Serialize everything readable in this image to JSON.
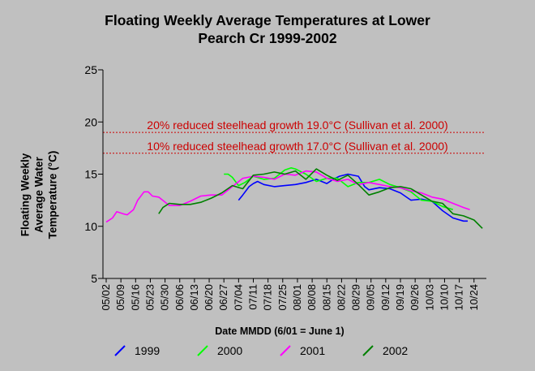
{
  "chart_data": {
    "type": "line",
    "title": "Floating Weekly Average Temperatures at Lower\nPearch Cr 1999-2002",
    "xlabel": "Date MMDD (6/01 = June 1)",
    "ylabel": "Floating Weekly\nAverage Water\nTemperature (°C)",
    "ylim": [
      5,
      25
    ],
    "yticks": [
      5,
      10,
      15,
      20,
      25
    ],
    "xticks": [
      "05/02",
      "05/09",
      "05/16",
      "05/23",
      "05/30",
      "06/06",
      "06/13",
      "06/20",
      "06/27",
      "07/04",
      "07/11",
      "07/18",
      "07/25",
      "08/01",
      "08/08",
      "08/15",
      "08/22",
      "08/29",
      "09/05",
      "09/12",
      "09/19",
      "09/26",
      "10/03",
      "10/10",
      "10/17",
      "10/24"
    ],
    "grid": false,
    "legend_position": "bottom",
    "reference_lines": [
      {
        "label": "20% reduced steelhead growth 19.0°C (Sullivan et al. 2000)",
        "value": 19.0,
        "color": "#cc0000"
      },
      {
        "label": "10% reduced steelhead growth 17.0°C (Sullivan et al. 2000)",
        "value": 17.0,
        "color": "#cc0000"
      }
    ],
    "series": [
      {
        "name": "1999",
        "color": "#0000ff",
        "x": [
          63,
          65,
          68,
          70,
          72,
          75,
          80,
          85,
          90,
          95,
          100,
          105,
          108,
          111,
          115,
          120,
          123,
          125,
          130,
          135,
          140,
          145,
          150,
          155,
          160,
          165,
          170,
          172
        ],
        "y": [
          12.5,
          13.0,
          13.8,
          14.1,
          14.3,
          14.0,
          13.8,
          13.9,
          14.0,
          14.2,
          14.5,
          14.1,
          14.5,
          14.8,
          15.0,
          14.8,
          13.8,
          13.5,
          13.7,
          13.6,
          13.2,
          12.5,
          12.6,
          12.4,
          11.5,
          10.8,
          10.5,
          10.5
        ]
      },
      {
        "name": "2000",
        "color": "#00ff00",
        "x": [
          56,
          58,
          60,
          63,
          66,
          70,
          75,
          80,
          85,
          88,
          90,
          95,
          100,
          105,
          110,
          115,
          120,
          125,
          130,
          135,
          140,
          145,
          150,
          155,
          160,
          165
        ],
        "y": [
          15.0,
          15.0,
          14.7,
          13.9,
          14.2,
          14.8,
          14.5,
          14.6,
          15.4,
          15.6,
          15.5,
          15.0,
          14.3,
          14.6,
          14.6,
          13.8,
          14.2,
          14.2,
          14.5,
          14.0,
          13.7,
          13.3,
          12.5,
          12.4,
          11.9,
          11.6
        ]
      },
      {
        "name": "2001",
        "color": "#ff00ff",
        "x": [
          0,
          3,
          5,
          8,
          10,
          13,
          15,
          18,
          20,
          22,
          25,
          30,
          35,
          40,
          45,
          50,
          55,
          60,
          65,
          70,
          75,
          80,
          85,
          90,
          95,
          100,
          105,
          110,
          115,
          120,
          125,
          130,
          135,
          140,
          145,
          150,
          155,
          160,
          165,
          170,
          173
        ],
        "y": [
          10.4,
          10.8,
          11.4,
          11.2,
          11.1,
          11.6,
          12.5,
          13.3,
          13.3,
          12.9,
          12.8,
          12.0,
          12.0,
          12.4,
          12.9,
          13.0,
          13.0,
          13.8,
          14.6,
          14.8,
          14.7,
          14.5,
          15.0,
          14.9,
          15.3,
          15.2,
          14.6,
          14.3,
          14.5,
          14.0,
          14.2,
          14.0,
          13.8,
          13.7,
          13.4,
          13.2,
          12.8,
          12.6,
          12.2,
          11.8,
          11.6
        ]
      },
      {
        "name": "2002",
        "color": "#008000",
        "x": [
          25,
          27,
          30,
          35,
          40,
          45,
          50,
          55,
          60,
          65,
          70,
          75,
          80,
          85,
          90,
          95,
          100,
          105,
          110,
          115,
          120,
          125,
          130,
          135,
          140,
          145,
          150,
          155,
          160,
          165,
          170,
          175,
          179
        ],
        "y": [
          11.2,
          11.8,
          12.2,
          12.1,
          12.1,
          12.3,
          12.7,
          13.2,
          13.9,
          13.6,
          14.9,
          15.0,
          15.2,
          15.0,
          15.3,
          14.5,
          15.5,
          14.9,
          14.4,
          14.9,
          14.0,
          13.0,
          13.3,
          13.7,
          13.8,
          13.6,
          13.0,
          12.4,
          12.2,
          11.2,
          11.0,
          10.6,
          9.8
        ]
      }
    ]
  }
}
